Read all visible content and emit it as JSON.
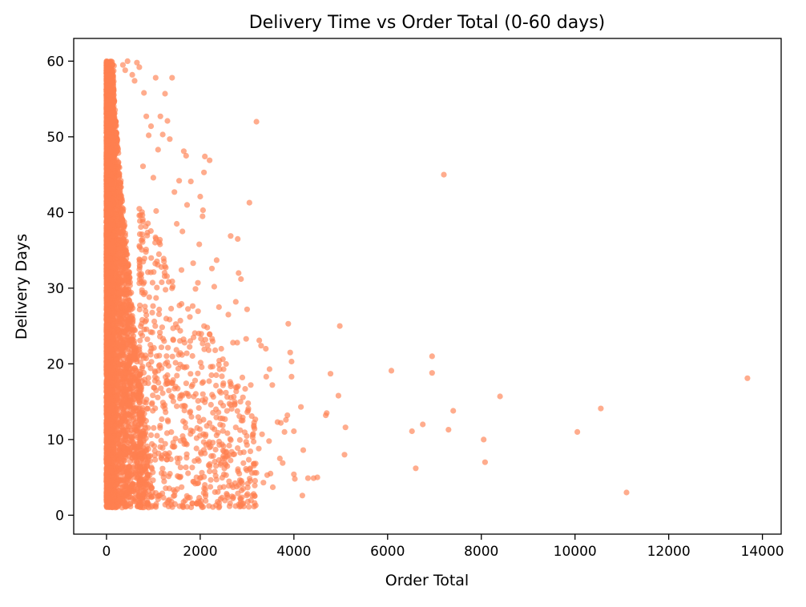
{
  "chart_data": {
    "type": "scatter",
    "title": "Delivery Time vs Order Total (0-60 days)",
    "xlabel": "Order Total",
    "ylabel": "Delivery Days",
    "xlim": [
      -700,
      14400
    ],
    "ylim": [
      -2.5,
      63
    ],
    "xticks": [
      0,
      2000,
      4000,
      6000,
      8000,
      10000,
      12000,
      14000
    ],
    "yticks": [
      0,
      10,
      20,
      30,
      40,
      50,
      60
    ],
    "grid": false,
    "legend": "none",
    "marker_color": "#ff7f50",
    "marker_opacity": 0.65,
    "dense_region": {
      "description": "thousands of overlapping points",
      "x_range": [
        0,
        1500
      ],
      "y_range": [
        1,
        60
      ]
    },
    "points": [
      [
        3200,
        52
      ],
      [
        7200,
        45
      ],
      [
        13680,
        18.1
      ],
      [
        11100,
        3
      ],
      [
        10550,
        14.1
      ],
      [
        10050,
        11
      ],
      [
        8400,
        15.7
      ],
      [
        8050,
        10
      ],
      [
        8080,
        7
      ],
      [
        7400,
        13.8
      ],
      [
        7300,
        11.3
      ],
      [
        6950,
        21
      ],
      [
        6950,
        18.8
      ],
      [
        6750,
        12
      ],
      [
        6600,
        6.2
      ],
      [
        6520,
        11.1
      ],
      [
        6080,
        19.1
      ],
      [
        5100,
        11.6
      ],
      [
        5080,
        8
      ],
      [
        4980,
        25
      ],
      [
        4950,
        15.8
      ],
      [
        4780,
        18.7
      ],
      [
        4700,
        13.5
      ],
      [
        4680,
        13.2
      ],
      [
        4500,
        5
      ],
      [
        4420,
        4.9
      ],
      [
        4300,
        4.9
      ],
      [
        4180,
        2.6
      ],
      [
        4200,
        8.6
      ],
      [
        4150,
        14.3
      ],
      [
        4020,
        4.8
      ],
      [
        4000,
        5.4
      ],
      [
        4000,
        11.1
      ],
      [
        3950,
        18.3
      ],
      [
        3950,
        20.3
      ],
      [
        3920,
        21.5
      ],
      [
        3880,
        25.3
      ],
      [
        3860,
        13.2
      ],
      [
        3830,
        12.6
      ],
      [
        3800,
        11
      ],
      [
        3760,
        6.9
      ],
      [
        3700,
        7.5
      ],
      [
        3720,
        12.2
      ],
      [
        3650,
        12.3
      ],
      [
        3550,
        3.7
      ],
      [
        3540,
        17.2
      ],
      [
        3500,
        5.5
      ],
      [
        3480,
        19.3
      ],
      [
        3470,
        9.8
      ],
      [
        3430,
        5.3
      ],
      [
        3410,
        18.3
      ],
      [
        3400,
        22
      ],
      [
        3350,
        4.3
      ],
      [
        3320,
        10.7
      ],
      [
        3300,
        22.4
      ],
      [
        3260,
        23.1
      ],
      [
        3200,
        5.6
      ],
      [
        3150,
        6.8
      ],
      [
        3100,
        13.1
      ],
      [
        3080,
        17.2
      ],
      [
        3050,
        41.3
      ],
      [
        3000,
        27.2
      ],
      [
        3010,
        2.8
      ],
      [
        2980,
        23.3
      ],
      [
        2960,
        16.7
      ],
      [
        2900,
        18.2
      ],
      [
        2870,
        31.2
      ],
      [
        2820,
        32
      ],
      [
        2800,
        36.5
      ],
      [
        2790,
        22.8
      ],
      [
        2760,
        28.2
      ],
      [
        2700,
        22.8
      ],
      [
        2650,
        36.9
      ],
      [
        2600,
        26.5
      ],
      [
        2550,
        16.2
      ],
      [
        2500,
        19.3
      ],
      [
        2450,
        22
      ],
      [
        2400,
        27.5
      ],
      [
        2350,
        33.7
      ],
      [
        2320,
        21.8
      ],
      [
        2300,
        30.2
      ],
      [
        2250,
        32.6
      ],
      [
        2200,
        46.9
      ],
      [
        2150,
        24.8
      ],
      [
        2100,
        47.4
      ],
      [
        2080,
        45.3
      ],
      [
        2060,
        40.3
      ],
      [
        2050,
        39.5
      ],
      [
        2000,
        42.1
      ],
      [
        1980,
        35.8
      ],
      [
        1950,
        30.7
      ],
      [
        1900,
        29.9
      ],
      [
        1850,
        33.3
      ],
      [
        1800,
        44.1
      ],
      [
        1780,
        26.2
      ],
      [
        1720,
        41
      ],
      [
        1700,
        47.5
      ],
      [
        1650,
        48.1
      ],
      [
        1620,
        37.5
      ],
      [
        1600,
        32.4
      ],
      [
        1550,
        44.2
      ],
      [
        1500,
        38.5
      ],
      [
        1450,
        42.7
      ],
      [
        1400,
        57.8
      ],
      [
        1350,
        49.7
      ],
      [
        1300,
        52.1
      ],
      [
        1250,
        55.7
      ],
      [
        1200,
        50.3
      ],
      [
        1150,
        52.7
      ],
      [
        1100,
        48.3
      ],
      [
        1050,
        57.8
      ],
      [
        1000,
        44.6
      ],
      [
        950,
        51.4
      ],
      [
        900,
        50.2
      ],
      [
        850,
        52.7
      ],
      [
        800,
        55.8
      ],
      [
        780,
        46.1
      ],
      [
        700,
        59.2
      ],
      [
        650,
        59.8
      ],
      [
        600,
        57.4
      ],
      [
        550,
        58.2
      ],
      [
        450,
        60
      ],
      [
        400,
        58.8
      ],
      [
        350,
        59.5
      ],
      [
        3250,
        8.8
      ],
      [
        3120,
        10.3
      ],
      [
        2980,
        9.7
      ],
      [
        2880,
        12.5
      ],
      [
        2760,
        11.6
      ],
      [
        2620,
        9.2
      ],
      [
        2560,
        8.4
      ],
      [
        2480,
        7.5
      ],
      [
        2430,
        12.8
      ],
      [
        2380,
        10.9
      ],
      [
        2330,
        5.2
      ],
      [
        2270,
        9.6
      ],
      [
        2230,
        14.6
      ],
      [
        2180,
        6.6
      ],
      [
        2140,
        11.8
      ],
      [
        2110,
        3.4
      ],
      [
        2050,
        15.2
      ],
      [
        2020,
        8.1
      ],
      [
        1990,
        12.4
      ],
      [
        1940,
        4.2
      ],
      [
        1890,
        17.8
      ],
      [
        1830,
        6.3
      ],
      [
        1790,
        13.7
      ],
      [
        1740,
        2.3
      ],
      [
        1700,
        16.1
      ],
      [
        1660,
        9.4
      ],
      [
        1630,
        19.6
      ],
      [
        1580,
        5.1
      ],
      [
        1540,
        21.2
      ],
      [
        1500,
        14.4
      ],
      [
        1460,
        3.1
      ],
      [
        1420,
        24.7
      ],
      [
        1380,
        27.3
      ],
      [
        1340,
        8.2
      ],
      [
        1300,
        18.5
      ],
      [
        1260,
        29.8
      ],
      [
        1220,
        33.9
      ],
      [
        1180,
        12.7
      ],
      [
        1140,
        36.4
      ],
      [
        1100,
        2.1
      ],
      [
        1060,
        40.2
      ],
      [
        1020,
        25.6
      ]
    ]
  }
}
